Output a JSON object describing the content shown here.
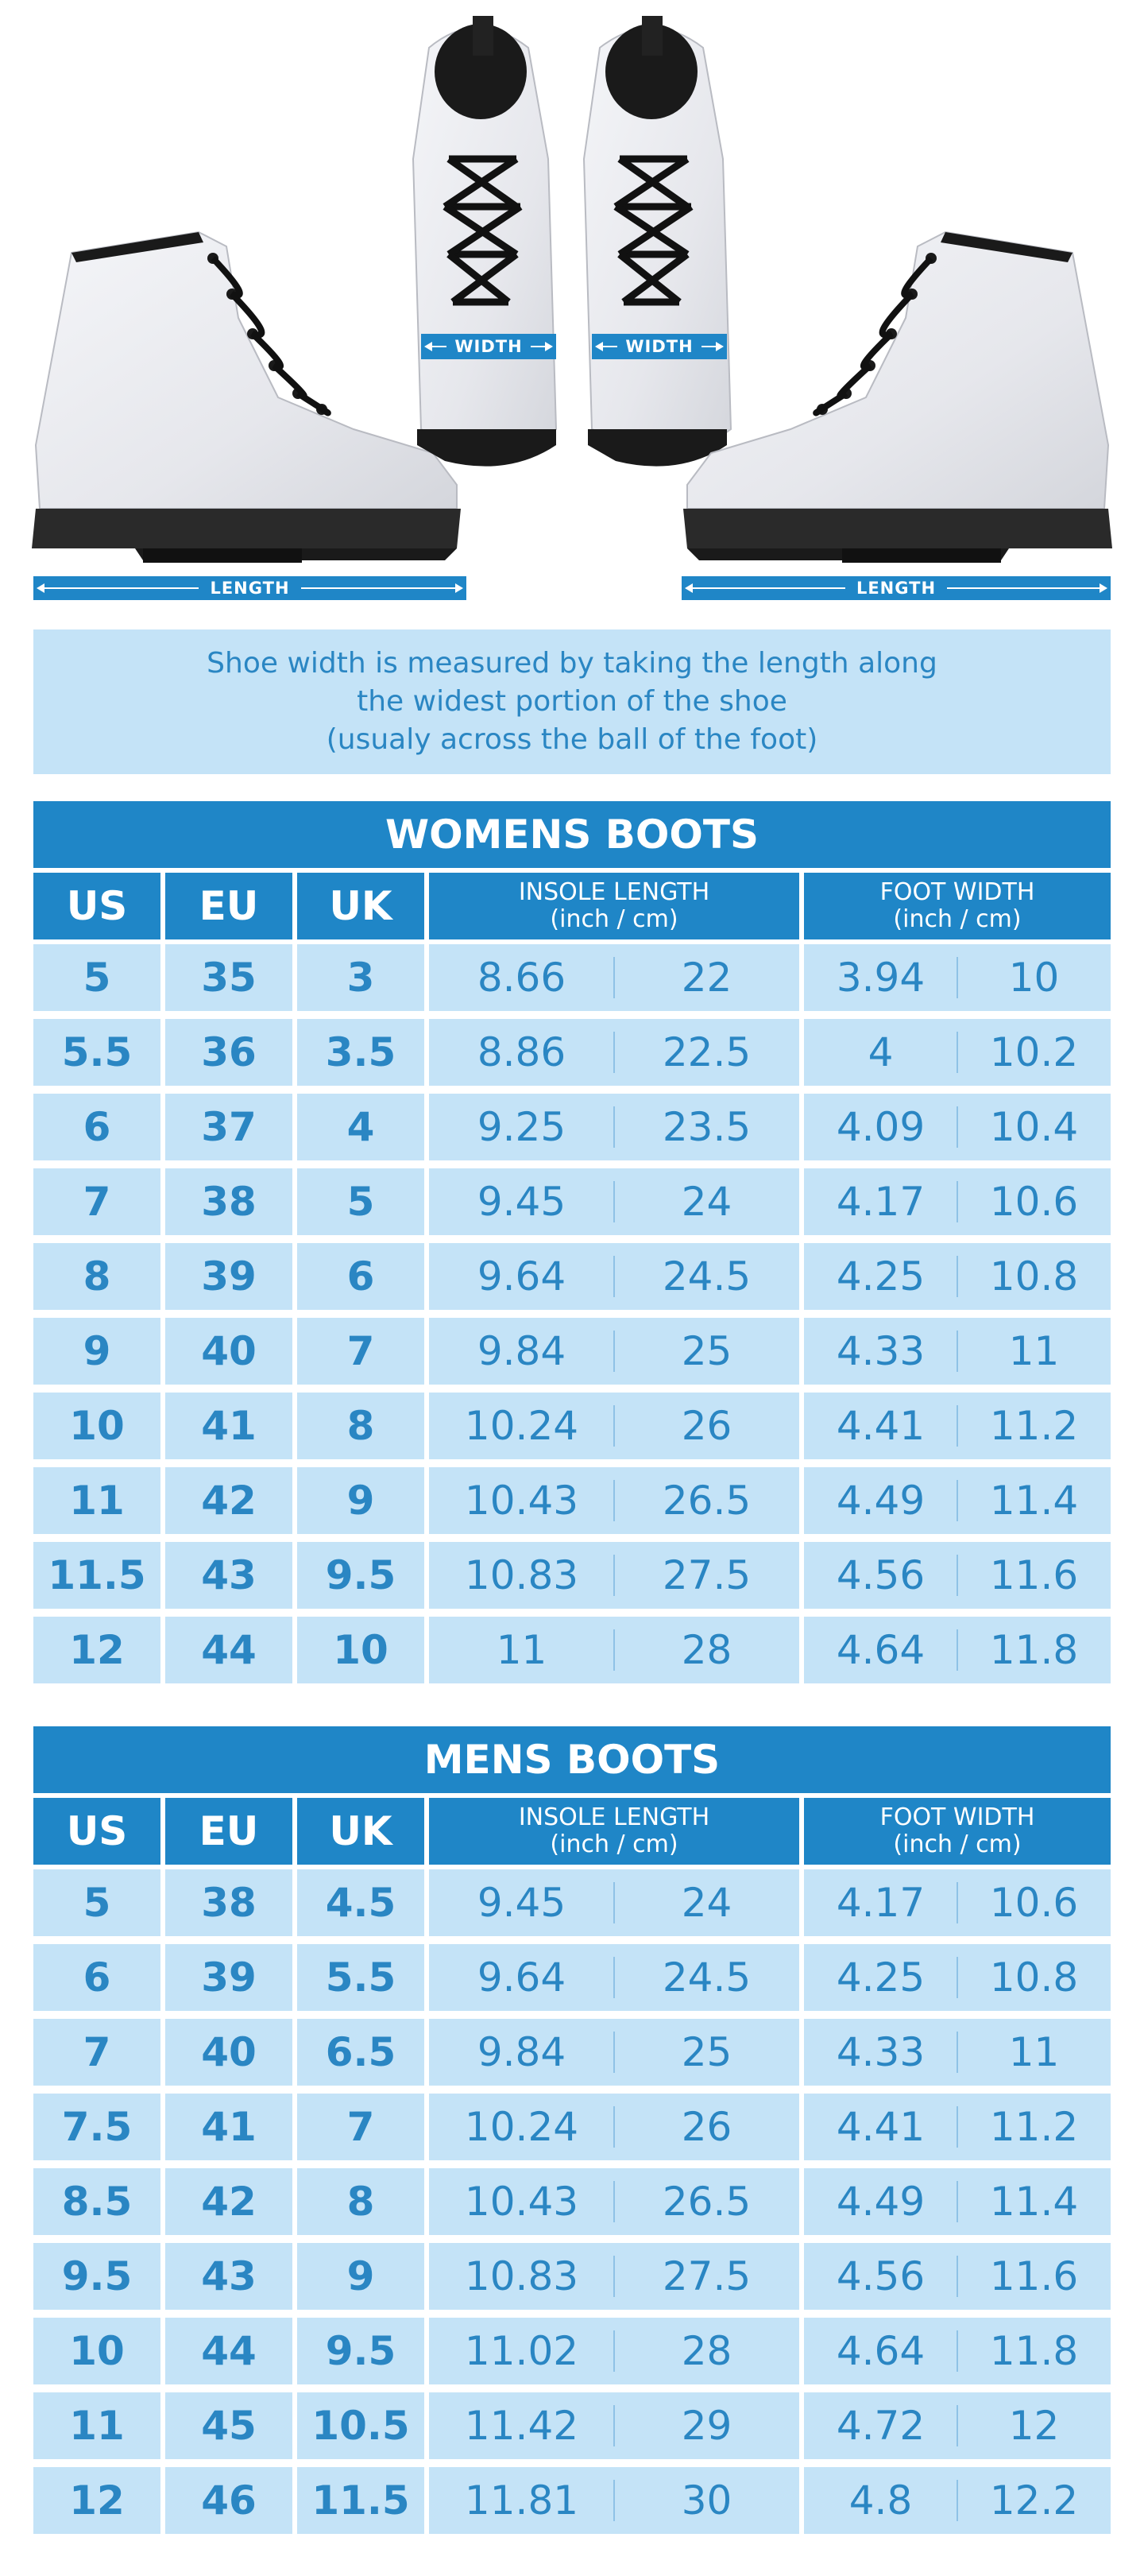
{
  "illustration": {
    "length_label": "LENGTH",
    "width_label": "WIDTH"
  },
  "info": {
    "line1": "Shoe width is measured by taking the length along",
    "line2": "the widest portion of the shoe",
    "line3": "(usualy across the ball of the foot)"
  },
  "columns": {
    "us": "US",
    "eu": "EU",
    "uk": "UK",
    "insole": "INSOLE LENGTH",
    "insole_unit": "(inch / cm)",
    "foot": "FOOT WIDTH",
    "foot_unit": "(inch / cm)"
  },
  "tables": [
    {
      "title": "WOMENS BOOTS",
      "rows": [
        [
          "5",
          "35",
          "3",
          "8.66",
          "22",
          "3.94",
          "10"
        ],
        [
          "5.5",
          "36",
          "3.5",
          "8.86",
          "22.5",
          "4",
          "10.2"
        ],
        [
          "6",
          "37",
          "4",
          "9.25",
          "23.5",
          "4.09",
          "10.4"
        ],
        [
          "7",
          "38",
          "5",
          "9.45",
          "24",
          "4.17",
          "10.6"
        ],
        [
          "8",
          "39",
          "6",
          "9.64",
          "24.5",
          "4.25",
          "10.8"
        ],
        [
          "9",
          "40",
          "7",
          "9.84",
          "25",
          "4.33",
          "11"
        ],
        [
          "10",
          "41",
          "8",
          "10.24",
          "26",
          "4.41",
          "11.2"
        ],
        [
          "11",
          "42",
          "9",
          "10.43",
          "26.5",
          "4.49",
          "11.4"
        ],
        [
          "11.5",
          "43",
          "9.5",
          "10.83",
          "27.5",
          "4.56",
          "11.6"
        ],
        [
          "12",
          "44",
          "10",
          "11",
          "28",
          "4.64",
          "11.8"
        ]
      ]
    },
    {
      "title": "MENS BOOTS",
      "rows": [
        [
          "5",
          "38",
          "4.5",
          "9.45",
          "24",
          "4.17",
          "10.6"
        ],
        [
          "6",
          "39",
          "5.5",
          "9.64",
          "24.5",
          "4.25",
          "10.8"
        ],
        [
          "7",
          "40",
          "6.5",
          "9.84",
          "25",
          "4.33",
          "11"
        ],
        [
          "7.5",
          "41",
          "7",
          "10.24",
          "26",
          "4.41",
          "11.2"
        ],
        [
          "8.5",
          "42",
          "8",
          "10.43",
          "26.5",
          "4.49",
          "11.4"
        ],
        [
          "9.5",
          "43",
          "9",
          "10.83",
          "27.5",
          "4.56",
          "11.6"
        ],
        [
          "10",
          "44",
          "9.5",
          "11.02",
          "28",
          "4.64",
          "11.8"
        ],
        [
          "11",
          "45",
          "10.5",
          "11.42",
          "29",
          "4.72",
          "12"
        ],
        [
          "12",
          "46",
          "11.5",
          "11.81",
          "30",
          "4.8",
          "12.2"
        ]
      ]
    }
  ],
  "colors": {
    "header_blue": "#1f86c7",
    "cell_light_blue": "#c4e3f7",
    "text_blue": "#2a86c3"
  }
}
